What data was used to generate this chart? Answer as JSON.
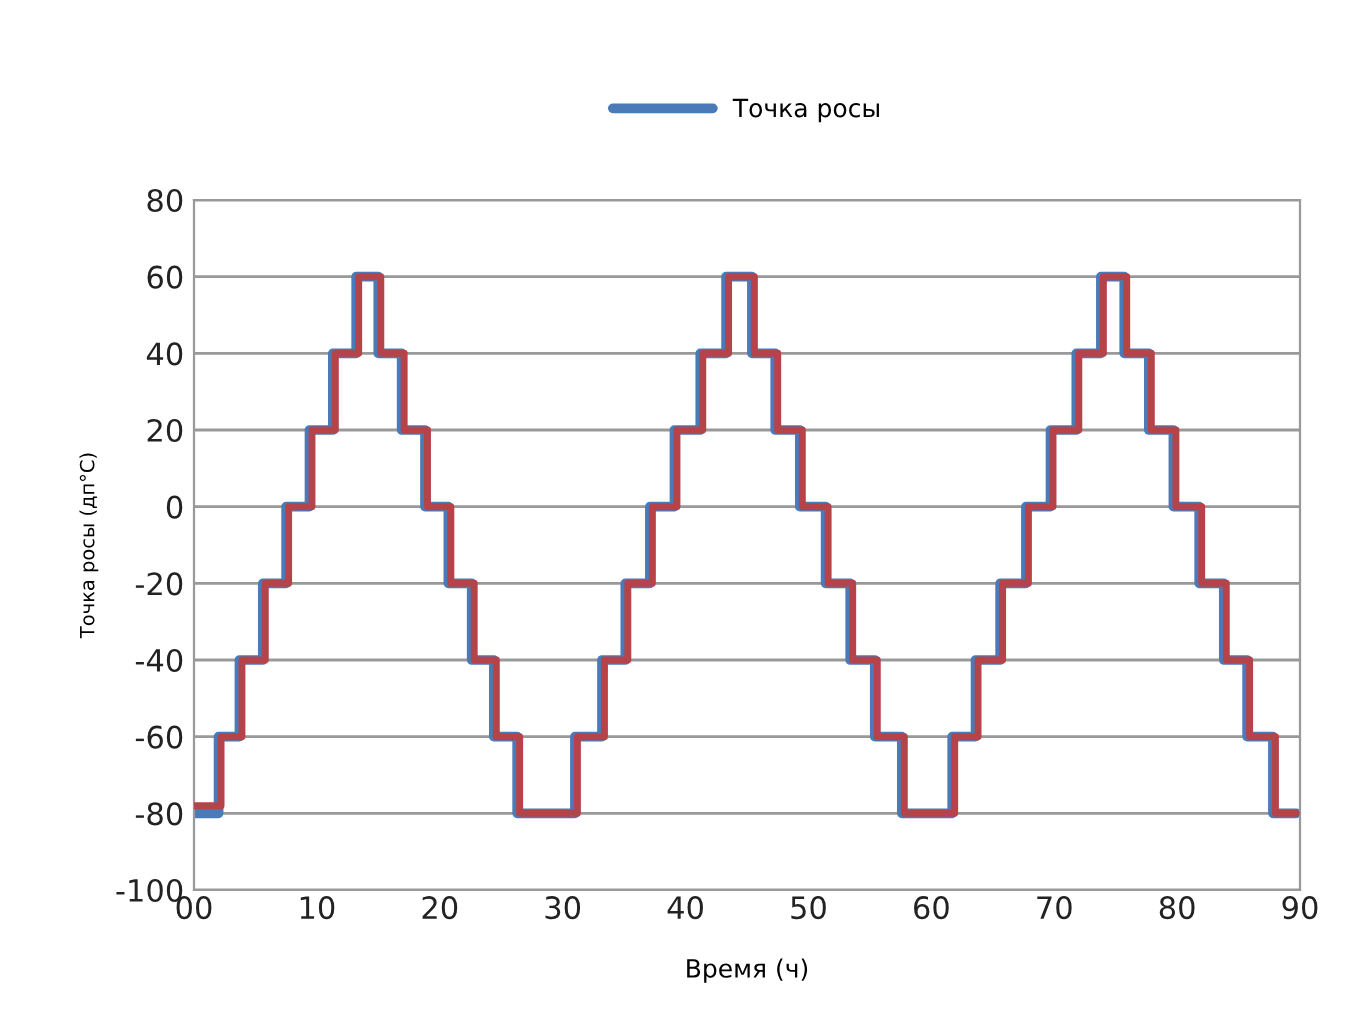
{
  "chart_data": {
    "type": "step",
    "xlabel": "Время (ч)",
    "ylabel": "Точка росы (дп°C)",
    "x": [
      0,
      2.0,
      3.7,
      5.6,
      7.5,
      9.4,
      11.3,
      13.2,
      15.0,
      16.9,
      18.8,
      20.7,
      22.6,
      24.4,
      26.3,
      31.0,
      33.2,
      35.1,
      37.1,
      39.1,
      41.2,
      43.3,
      45.4,
      47.3,
      49.3,
      51.4,
      53.4,
      55.4,
      57.6,
      61.7,
      63.6,
      65.6,
      67.7,
      69.7,
      71.8,
      73.8,
      75.7,
      77.7,
      79.7,
      81.8,
      83.8,
      85.7,
      87.8,
      89.7
    ],
    "series": [
      {
        "name": "Точка росы",
        "color": "#4a7ab8",
        "values": [
          -80,
          -60,
          -40,
          -20,
          0,
          20,
          40,
          60,
          40,
          20,
          0,
          -20,
          -40,
          -60,
          -80,
          -60,
          -40,
          -20,
          0,
          20,
          40,
          60,
          40,
          20,
          0,
          -20,
          -40,
          -60,
          -80,
          -60,
          -40,
          -20,
          0,
          20,
          40,
          60,
          40,
          20,
          0,
          -20,
          -40,
          -60,
          -80,
          -80
        ]
      },
      {
        "color": "#b5434a",
        "x": [
          0,
          2.2,
          3.9,
          5.8,
          7.7,
          9.6,
          11.5,
          13.4,
          15.2,
          17.1,
          19.0,
          20.9,
          22.8,
          24.6,
          26.5,
          31.2,
          33.4,
          35.3,
          37.3,
          39.3,
          41.4,
          43.5,
          45.6,
          47.5,
          49.5,
          51.6,
          53.6,
          55.6,
          57.8,
          61.9,
          63.8,
          65.8,
          67.9,
          69.9,
          72.0,
          74.0,
          75.9,
          77.9,
          79.9,
          82.0,
          84.0,
          85.9,
          88.0,
          89.7
        ],
        "values": [
          -78,
          -60,
          -40,
          -20,
          0,
          20,
          40,
          60,
          40,
          20,
          0,
          -20,
          -40,
          -60,
          -80,
          -60,
          -40,
          -20,
          0,
          20,
          40,
          60,
          40,
          20,
          0,
          -20,
          -40,
          -60,
          -80,
          -60,
          -40,
          -20,
          0,
          20,
          40,
          60,
          40,
          20,
          0,
          -20,
          -40,
          -60,
          -80,
          -80
        ]
      }
    ],
    "xlim": [
      0,
      90
    ],
    "xticks": [
      {
        "value": 0,
        "label": "00"
      },
      10,
      20,
      30,
      40,
      50,
      60,
      70,
      80,
      90
    ],
    "ylim": [
      -100,
      80
    ],
    "yticks": [
      -100,
      -80,
      -60,
      -40,
      -20,
      0,
      20,
      40,
      60,
      80
    ],
    "grid": "y",
    "legend": "top",
    "line_style": "solid",
    "marker": "none"
  }
}
